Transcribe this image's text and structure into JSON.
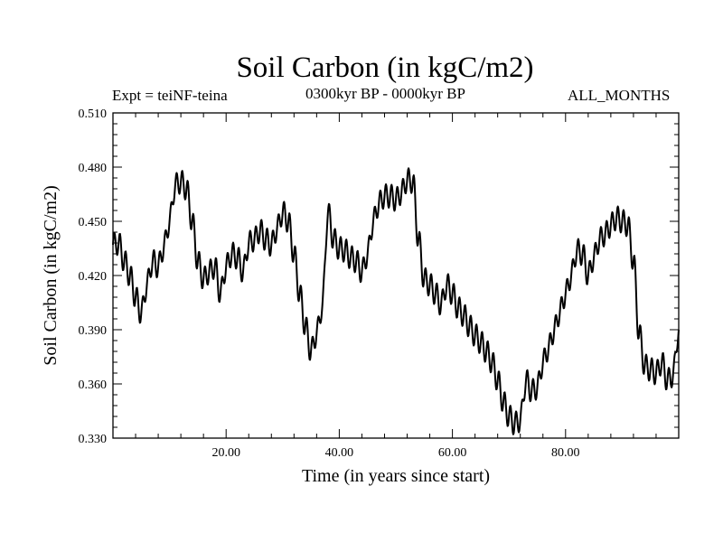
{
  "header": {
    "expt": "Expt = teiNF-teina",
    "period": "0300kyr BP - 0000kyr BP",
    "months": "ALL_MONTHS"
  },
  "chart_data": {
    "type": "line",
    "title": "Soil Carbon (in kgC/m2)",
    "xlabel": "Time (in years since start)",
    "ylabel": "Soil Carbon (in kgC/m2)",
    "xlim": [
      0,
      100
    ],
    "ylim": [
      0.33,
      0.51
    ],
    "xticks": [
      20,
      40,
      60,
      80
    ],
    "xtick_labels": [
      "20.00",
      "40.00",
      "60.00",
      "80.00"
    ],
    "yticks": [
      0.33,
      0.36,
      0.39,
      0.42,
      0.45,
      0.48,
      0.51
    ],
    "ytick_labels": [
      "0.330",
      "0.360",
      "0.390",
      "0.420",
      "0.450",
      "0.480",
      "0.510"
    ],
    "grid": false,
    "series": [
      {
        "name": "Soil Carbon",
        "x": [
          0,
          1,
          2,
          3,
          4,
          5,
          6,
          7,
          8,
          9,
          10,
          11,
          12,
          13,
          14,
          15,
          16,
          17,
          18,
          19,
          20,
          21,
          22,
          23,
          24,
          25,
          26,
          27,
          28,
          29,
          30,
          31,
          32,
          33,
          34,
          35,
          36,
          37,
          38,
          39,
          40,
          41,
          42,
          43,
          44,
          45,
          46,
          47,
          48,
          49,
          50,
          51,
          52,
          53,
          54,
          55,
          56,
          57,
          58,
          59,
          60,
          61,
          62,
          63,
          64,
          65,
          66,
          67,
          68,
          69,
          70,
          71,
          72,
          73,
          74,
          75,
          76,
          77,
          78,
          79,
          80,
          81,
          82,
          83,
          84,
          85,
          86,
          87,
          88,
          89,
          90,
          91,
          92,
          93,
          94,
          95,
          96,
          97,
          98,
          99,
          100
        ],
        "values": [
          0.437,
          0.438,
          0.428,
          0.42,
          0.408,
          0.399,
          0.415,
          0.428,
          0.425,
          0.436,
          0.45,
          0.47,
          0.472,
          0.468,
          0.45,
          0.428,
          0.418,
          0.422,
          0.425,
          0.41,
          0.425,
          0.432,
          0.43,
          0.422,
          0.438,
          0.44,
          0.445,
          0.44,
          0.437,
          0.446,
          0.455,
          0.45,
          0.432,
          0.41,
          0.392,
          0.378,
          0.388,
          0.403,
          0.455,
          0.44,
          0.435,
          0.434,
          0.43,
          0.428,
          0.422,
          0.432,
          0.45,
          0.46,
          0.464,
          0.464,
          0.462,
          0.466,
          0.473,
          0.472,
          0.44,
          0.418,
          0.415,
          0.41,
          0.404,
          0.415,
          0.41,
          0.402,
          0.398,
          0.392,
          0.387,
          0.383,
          0.378,
          0.372,
          0.362,
          0.35,
          0.342,
          0.338,
          0.34,
          0.362,
          0.356,
          0.358,
          0.372,
          0.38,
          0.39,
          0.4,
          0.41,
          0.42,
          0.434,
          0.432,
          0.42,
          0.43,
          0.44,
          0.443,
          0.448,
          0.452,
          0.45,
          0.448,
          0.428,
          0.388,
          0.37,
          0.368,
          0.366,
          0.372,
          0.362,
          0.365,
          0.39
        ]
      }
    ]
  }
}
